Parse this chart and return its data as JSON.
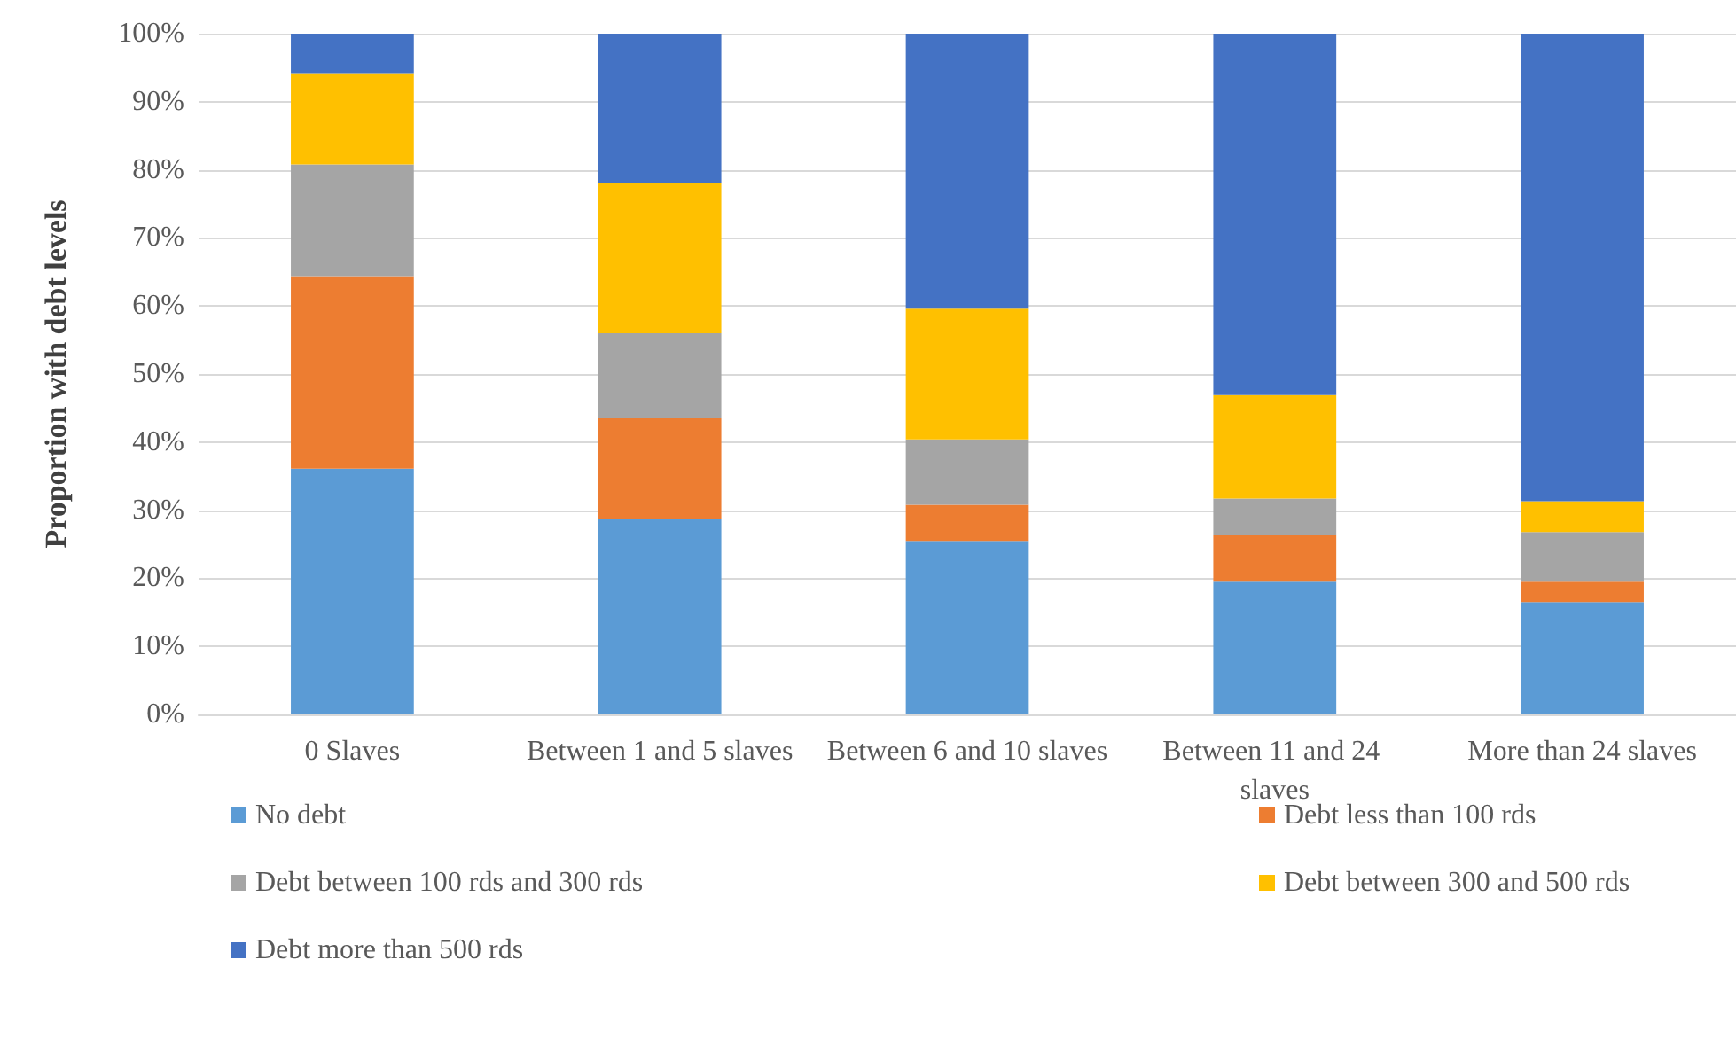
{
  "chart_data": {
    "type": "bar",
    "stacked": true,
    "ylabel": "Proportion with debt levels",
    "categories": [
      "0 Slaves",
      "Between 1 and 5 slaves",
      "Between 6 and 10 slaves",
      "Between 11 and 24 slaves",
      "More than 24 slaves"
    ],
    "series": [
      {
        "name": "No debt",
        "color": "#5b9bd5",
        "values": [
          36.1,
          28.7,
          25.5,
          19.5,
          16.5
        ]
      },
      {
        "name": "Debt less than 100 rds",
        "color": "#ed7d31",
        "values": [
          28.3,
          14.8,
          5.3,
          6.8,
          3.0
        ]
      },
      {
        "name": "Debt between 100 rds and 300 rds",
        "color": "#a5a5a5",
        "values": [
          16.4,
          12.5,
          9.6,
          5.4,
          7.3
        ]
      },
      {
        "name": "Debt between 300 and 500 rds",
        "color": "#ffc000",
        "values": [
          13.4,
          22.0,
          19.2,
          15.2,
          4.5
        ]
      },
      {
        "name": "Debt more than 500 rds",
        "color": "#4472c4",
        "values": [
          5.8,
          22.0,
          40.4,
          53.1,
          68.7
        ]
      }
    ],
    "ylim": [
      0,
      100
    ],
    "yticks": [
      {
        "value": 0,
        "label": "0%"
      },
      {
        "value": 10,
        "label": "10%"
      },
      {
        "value": 20,
        "label": "20%"
      },
      {
        "value": 30,
        "label": "30%"
      },
      {
        "value": 40,
        "label": "40%"
      },
      {
        "value": 50,
        "label": "50%"
      },
      {
        "value": 60,
        "label": "60%"
      },
      {
        "value": 70,
        "label": "70%"
      },
      {
        "value": 80,
        "label": "80%"
      },
      {
        "value": 90,
        "label": "90%"
      },
      {
        "value": 100,
        "label": "100%"
      }
    ],
    "grid": "y",
    "legend": "bottom"
  }
}
